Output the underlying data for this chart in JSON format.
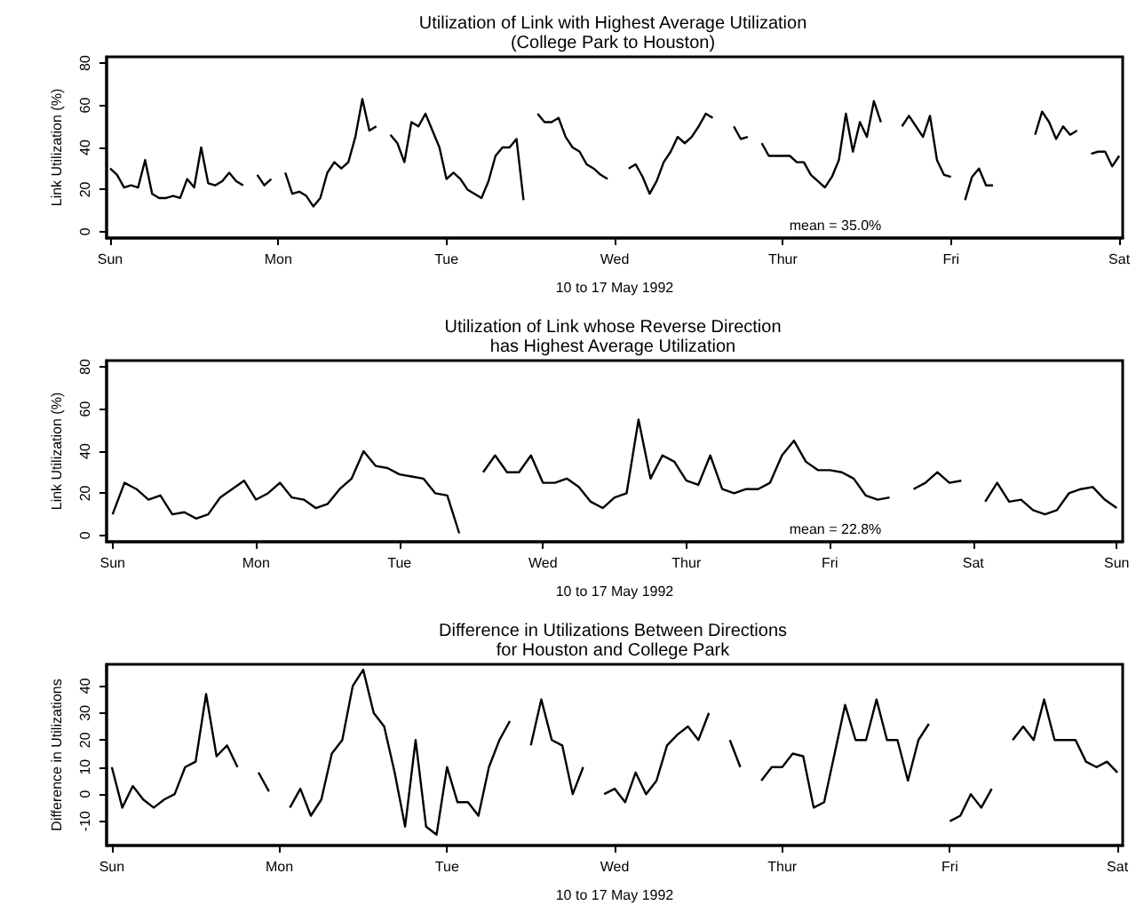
{
  "chart_data": [
    {
      "type": "line",
      "title": "Utilization of Link with Highest Average Utilization\n(College Park to Houston)",
      "xlabel": "10 to 17 May 1992",
      "ylabel": "Link Utilization (%)",
      "categories": [
        "Sun",
        null,
        null,
        null,
        null,
        null,
        null,
        null,
        null,
        null,
        null,
        null,
        null,
        null,
        null,
        null,
        null,
        null,
        null,
        null,
        null,
        null,
        null,
        null,
        "Mon",
        null,
        null,
        null,
        null,
        null,
        null,
        null,
        null,
        null,
        null,
        null,
        null,
        null,
        null,
        null,
        null,
        null,
        null,
        null,
        null,
        null,
        null,
        null,
        "Tue",
        null,
        null,
        null,
        null,
        null,
        null,
        null,
        null,
        null,
        null,
        null,
        null,
        null,
        null,
        null,
        null,
        null,
        null,
        null,
        null,
        null,
        null,
        null,
        "Wed",
        null,
        null,
        null,
        null,
        null,
        null,
        null,
        null,
        null,
        null,
        null,
        null,
        null,
        null,
        null,
        null,
        null,
        null,
        null,
        null,
        null,
        null,
        null,
        "Thur",
        null,
        null,
        null,
        null,
        null,
        null,
        null,
        null,
        null,
        null,
        null,
        null,
        null,
        null,
        null,
        null,
        null,
        null,
        null,
        null,
        null,
        null,
        null,
        "Fri",
        null,
        null,
        null,
        null,
        null,
        null,
        null,
        null,
        null,
        null,
        null,
        null,
        null,
        null,
        null,
        null,
        null,
        null,
        null,
        null,
        null,
        null,
        null,
        "Sat"
      ],
      "series": [
        {
          "color": "#000000",
          "values": [
            30,
            27,
            21,
            22,
            21,
            34,
            18,
            16,
            16,
            17,
            16,
            25,
            21,
            40,
            23,
            22,
            24,
            28,
            24,
            22,
            null,
            27,
            22,
            25,
            null,
            28,
            18,
            19,
            17,
            12,
            16,
            28,
            33,
            30,
            33,
            45,
            63,
            48,
            50,
            null,
            46,
            42,
            33,
            52,
            50,
            56,
            48,
            40,
            25,
            28,
            25,
            20,
            18,
            16,
            24,
            36,
            40,
            40,
            44,
            15,
            null,
            56,
            52,
            52,
            54,
            45,
            40,
            38,
            32,
            30,
            27,
            25,
            null,
            null,
            30,
            32,
            26,
            18,
            24,
            33,
            38,
            45,
            42,
            45,
            50,
            56,
            54,
            null,
            null,
            50,
            44,
            45,
            null,
            42,
            36,
            36,
            36,
            36,
            33,
            33,
            27,
            24,
            21,
            26,
            34,
            56,
            38,
            52,
            45,
            62,
            52,
            null,
            null,
            50,
            55,
            50,
            45,
            55,
            34,
            27,
            26,
            null,
            15,
            26,
            30,
            22,
            22,
            null,
            null,
            null,
            null,
            null,
            46,
            57,
            52,
            44,
            50,
            46,
            48,
            null,
            37,
            38,
            38,
            31,
            36
          ]
        }
      ],
      "ylim": [
        -3,
        83
      ],
      "yticks": [
        0,
        20,
        40,
        60,
        80
      ],
      "line_style": "solid",
      "annotations": [
        "mean = 35.0%"
      ]
    },
    {
      "type": "line",
      "title": "Utilization of Link whose Reverse Direction\nhas Highest Average Utilization",
      "xlabel": "10 to 17 May 1992",
      "ylabel": "Link Utilization (%)",
      "categories": [
        "Sun",
        null,
        null,
        null,
        null,
        null,
        null,
        null,
        null,
        null,
        null,
        null,
        "Mon",
        null,
        null,
        null,
        null,
        null,
        null,
        null,
        null,
        null,
        null,
        null,
        "Tue",
        null,
        null,
        null,
        null,
        null,
        null,
        null,
        null,
        null,
        null,
        null,
        "Wed",
        null,
        null,
        null,
        null,
        null,
        null,
        null,
        null,
        null,
        null,
        null,
        "Thur",
        null,
        null,
        null,
        null,
        null,
        null,
        null,
        null,
        null,
        null,
        null,
        "Fri",
        null,
        null,
        null,
        null,
        null,
        null,
        null,
        null,
        null,
        null,
        null,
        "Sat",
        null,
        null,
        null,
        null,
        null,
        null,
        null,
        null,
        null,
        null,
        null,
        "Sun"
      ],
      "series": [
        {
          "color": "#000000",
          "values": [
            10,
            25,
            22,
            17,
            19,
            10,
            11,
            8,
            10,
            18,
            22,
            26,
            17,
            20,
            25,
            18,
            17,
            13,
            15,
            22,
            27,
            40,
            33,
            32,
            29,
            28,
            27,
            20,
            19,
            1,
            null,
            30,
            38,
            30,
            30,
            38,
            25,
            25,
            27,
            23,
            16,
            13,
            18,
            20,
            55,
            27,
            38,
            35,
            26,
            24,
            38,
            22,
            20,
            22,
            22,
            25,
            38,
            45,
            35,
            31,
            31,
            30,
            27,
            19,
            17,
            18,
            null,
            22,
            25,
            30,
            25,
            26,
            null,
            16,
            25,
            16,
            17,
            12,
            10,
            12,
            20,
            22,
            23,
            17,
            13
          ]
        }
      ],
      "ylim": [
        -3,
        83
      ],
      "yticks": [
        0,
        20,
        40,
        60,
        80
      ],
      "line_style": "solid",
      "annotations": [
        "mean = 22.8%"
      ]
    },
    {
      "type": "line",
      "title": "Difference in Utilizations Between Directions\nfor Houston and College Park",
      "xlabel": "10 to 17 May 1992",
      "ylabel": "Difference in Utilizations",
      "categories": [
        "Sun",
        null,
        null,
        null,
        null,
        null,
        null,
        null,
        null,
        null,
        null,
        null,
        null,
        null,
        null,
        null,
        "Mon",
        null,
        null,
        null,
        null,
        null,
        null,
        null,
        null,
        null,
        null,
        null,
        null,
        null,
        null,
        null,
        "Tue",
        null,
        null,
        null,
        null,
        null,
        null,
        null,
        null,
        null,
        null,
        null,
        null,
        null,
        null,
        null,
        "Wed",
        null,
        null,
        null,
        null,
        null,
        null,
        null,
        null,
        null,
        null,
        null,
        null,
        null,
        null,
        null,
        "Thur",
        null,
        null,
        null,
        null,
        null,
        null,
        null,
        null,
        null,
        null,
        null,
        null,
        null,
        null,
        null,
        "Fri",
        null,
        null,
        null,
        null,
        null,
        null,
        null,
        null,
        null,
        null,
        null,
        null,
        null,
        null,
        null,
        "Sat"
      ],
      "series": [
        {
          "color": "#000000",
          "values": [
            10,
            -5,
            3,
            -2,
            -5,
            -2,
            0,
            10,
            12,
            37,
            14,
            18,
            10,
            null,
            8,
            1,
            null,
            -5,
            2,
            -8,
            -2,
            15,
            20,
            40,
            46,
            30,
            25,
            8,
            -12,
            20,
            -12,
            -15,
            10,
            -3,
            -3,
            -8,
            10,
            20,
            27,
            null,
            18,
            35,
            20,
            18,
            0,
            10,
            null,
            0,
            2,
            -3,
            8,
            0,
            5,
            18,
            22,
            25,
            20,
            30,
            null,
            20,
            10,
            null,
            5,
            10,
            10,
            15,
            14,
            -5,
            -3,
            15,
            33,
            20,
            20,
            35,
            20,
            20,
            5,
            20,
            26,
            null,
            -10,
            -8,
            0,
            -5,
            2,
            null,
            20,
            25,
            20,
            35,
            20,
            20,
            20,
            12,
            10,
            12,
            8
          ]
        }
      ],
      "ylim": [
        -19,
        48
      ],
      "yticks": [
        -10,
        0,
        10,
        20,
        30,
        40
      ],
      "line_style": "solid"
    }
  ]
}
